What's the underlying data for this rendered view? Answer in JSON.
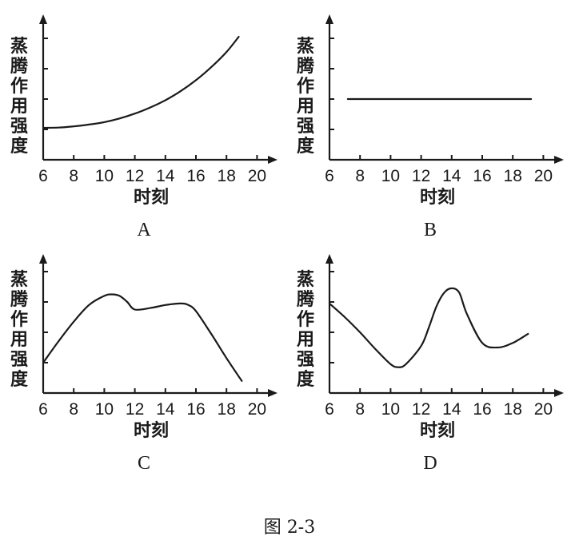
{
  "figure_caption": "图 2-3",
  "chart_data": [
    {
      "type": "line",
      "panel_label": "A",
      "xlabel": "时刻",
      "ylabel": "蒸腾作用强度",
      "xticks": [
        6,
        8,
        10,
        12,
        14,
        16,
        18,
        20
      ],
      "xlim": [
        6,
        21
      ],
      "ylim": [
        0,
        5
      ],
      "yticks": [
        1,
        2,
        3,
        4
      ],
      "series": [
        {
          "x": [
            6,
            7,
            8,
            9,
            10,
            11,
            12,
            13,
            14,
            15,
            16,
            17,
            18,
            18.8
          ],
          "y": [
            1.05,
            1.06,
            1.1,
            1.16,
            1.24,
            1.36,
            1.52,
            1.72,
            1.96,
            2.26,
            2.62,
            3.05,
            3.55,
            4.05
          ]
        }
      ]
    },
    {
      "type": "line",
      "panel_label": "B",
      "xlabel": "时刻",
      "ylabel": "蒸腾作用强度",
      "xticks": [
        6,
        8,
        10,
        12,
        14,
        16,
        18,
        20
      ],
      "xlim": [
        6,
        21
      ],
      "ylim": [
        0,
        5
      ],
      "yticks": [
        1,
        2,
        3,
        4
      ],
      "series": [
        {
          "x": [
            7.2,
            19.2
          ],
          "y": [
            2.0,
            2.0
          ]
        }
      ]
    },
    {
      "type": "line",
      "panel_label": "C",
      "xlabel": "时刻",
      "ylabel": "蒸腾作用强度",
      "xticks": [
        6,
        8,
        10,
        12,
        14,
        16,
        18,
        20
      ],
      "xlim": [
        6,
        21
      ],
      "ylim": [
        0,
        5
      ],
      "yticks": [
        1,
        2,
        3,
        4
      ],
      "series": [
        {
          "x": [
            6,
            7,
            8,
            9,
            10,
            10.5,
            11,
            11.5,
            12,
            13,
            14,
            15,
            15.5,
            16,
            17,
            18,
            19
          ],
          "y": [
            1.0,
            1.7,
            2.35,
            2.9,
            3.2,
            3.25,
            3.2,
            3.0,
            2.75,
            2.8,
            2.9,
            2.95,
            2.9,
            2.7,
            1.95,
            1.15,
            0.4
          ]
        }
      ]
    },
    {
      "type": "line",
      "panel_label": "D",
      "xlabel": "时刻",
      "ylabel": "蒸腾作用强度",
      "xticks": [
        6,
        8,
        10,
        12,
        14,
        16,
        18,
        20
      ],
      "xlim": [
        6,
        21
      ],
      "ylim": [
        0,
        5
      ],
      "yticks": [
        1,
        2,
        3,
        4
      ],
      "series": [
        {
          "x": [
            6,
            7,
            8,
            9,
            10,
            10.5,
            11,
            12,
            12.5,
            13,
            13.5,
            14,
            14.5,
            15,
            16,
            17,
            18,
            19
          ],
          "y": [
            2.95,
            2.5,
            2.0,
            1.45,
            0.95,
            0.85,
            0.95,
            1.55,
            2.15,
            2.85,
            3.3,
            3.45,
            3.3,
            2.6,
            1.65,
            1.5,
            1.65,
            1.95
          ]
        }
      ]
    }
  ]
}
